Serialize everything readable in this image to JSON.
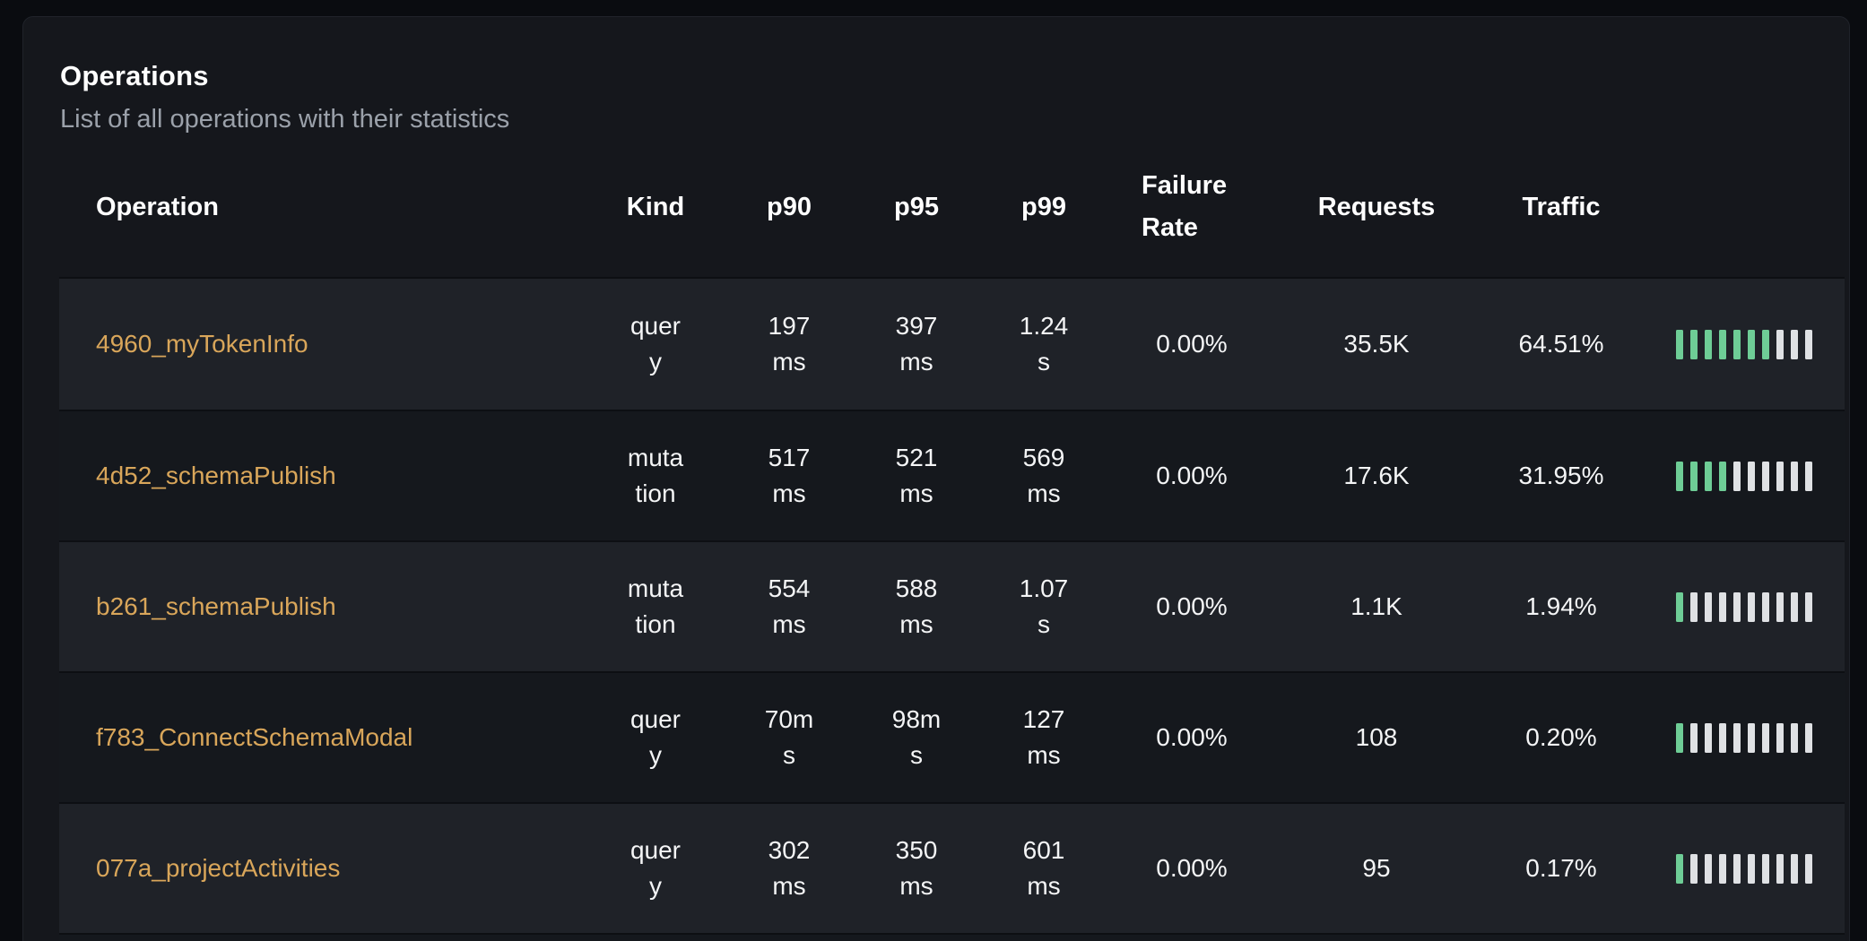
{
  "panel": {
    "title": "Operations",
    "subtitle": "List of all operations with their statistics"
  },
  "colors": {
    "operation_link": "#d9a65a",
    "bar_filled": "#6ecd96",
    "bar_empty": "#dfe1e4",
    "row_odd_bg": "#1f2228",
    "row_even_bg": "#15181d",
    "card_bg": "#15171c",
    "page_bg": "#0a0c10"
  },
  "table": {
    "columns": [
      "Operation",
      "Kind",
      "p90",
      "p95",
      "p99",
      "Failure Rate",
      "Requests",
      "Traffic"
    ],
    "rows": [
      {
        "operation": "4960_myTokenInfo",
        "kind": "query",
        "p90": "197ms",
        "p95": "397ms",
        "p99": "1.24s",
        "failure_rate": "0.00%",
        "requests": "35.5K",
        "traffic": "64.51%",
        "bars_filled": 7,
        "bars_total": 10
      },
      {
        "operation": "4d52_schemaPublish",
        "kind": "mutation",
        "p90": "517ms",
        "p95": "521ms",
        "p99": "569ms",
        "failure_rate": "0.00%",
        "requests": "17.6K",
        "traffic": "31.95%",
        "bars_filled": 4,
        "bars_total": 10
      },
      {
        "operation": "b261_schemaPublish",
        "kind": "mutation",
        "p90": "554ms",
        "p95": "588ms",
        "p99": "1.07s",
        "failure_rate": "0.00%",
        "requests": "1.1K",
        "traffic": "1.94%",
        "bars_filled": 1,
        "bars_total": 10
      },
      {
        "operation": "f783_ConnectSchemaModal",
        "kind": "query",
        "p90": "70ms",
        "p95": "98ms",
        "p99": "127ms",
        "failure_rate": "0.00%",
        "requests": "108",
        "traffic": "0.20%",
        "bars_filled": 1,
        "bars_total": 10
      },
      {
        "operation": "077a_projectActivities",
        "kind": "query",
        "p90": "302ms",
        "p95": "350ms",
        "p99": "601ms",
        "failure_rate": "0.00%",
        "requests": "95",
        "traffic": "0.17%",
        "bars_filled": 1,
        "bars_total": 10
      }
    ]
  }
}
